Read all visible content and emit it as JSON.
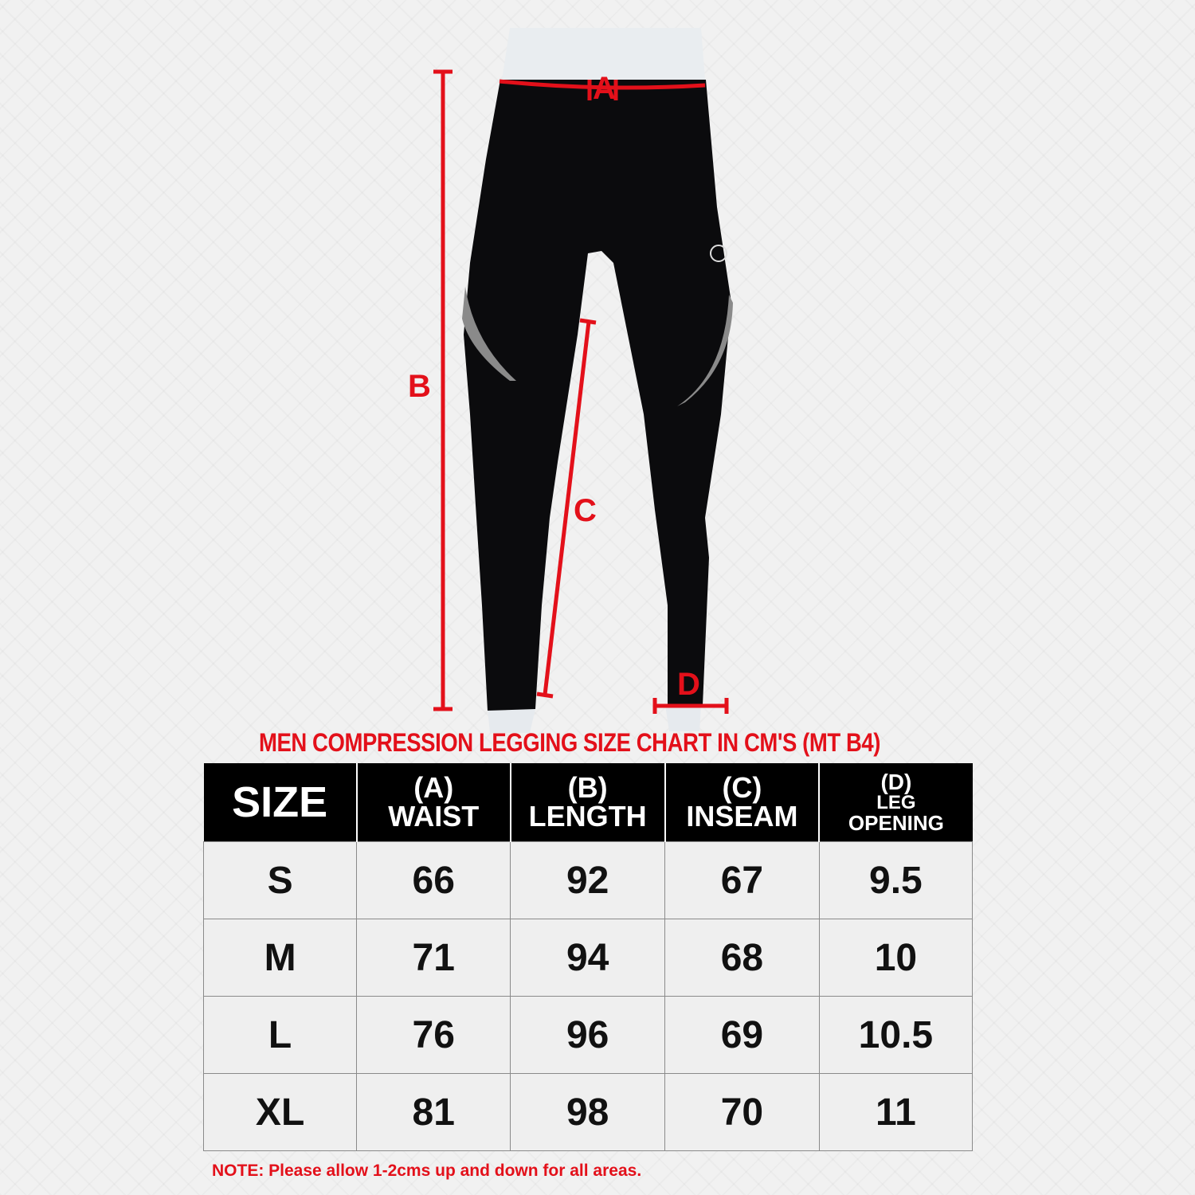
{
  "figure": {
    "labels": {
      "a": "A",
      "b": "B",
      "c": "C",
      "d": "D"
    },
    "accent_color": "#e3101a",
    "garment_color": "#0b0b0d",
    "stripe_color": "#8a8a8a"
  },
  "title": "MEN COMPRESSION LEGGING SIZE CHART IN CM'S (MT B4)",
  "table": {
    "headers": [
      {
        "line1": "SIZE"
      },
      {
        "line1": "(A)",
        "line2": "WAIST"
      },
      {
        "line1": "(B)",
        "line2": "LENGTH"
      },
      {
        "line1": "(C)",
        "line2": "INSEAM"
      },
      {
        "line1": "(D)",
        "line2": "LEG",
        "line3": "OPENING"
      }
    ],
    "rows": [
      [
        "S",
        "66",
        "92",
        "67",
        "9.5"
      ],
      [
        "M",
        "71",
        "94",
        "68",
        "10"
      ],
      [
        "L",
        "76",
        "96",
        "69",
        "10.5"
      ],
      [
        "XL",
        "81",
        "98",
        "70",
        "11"
      ]
    ]
  },
  "note": "NOTE: Please allow 1-2cms up and down for all areas."
}
